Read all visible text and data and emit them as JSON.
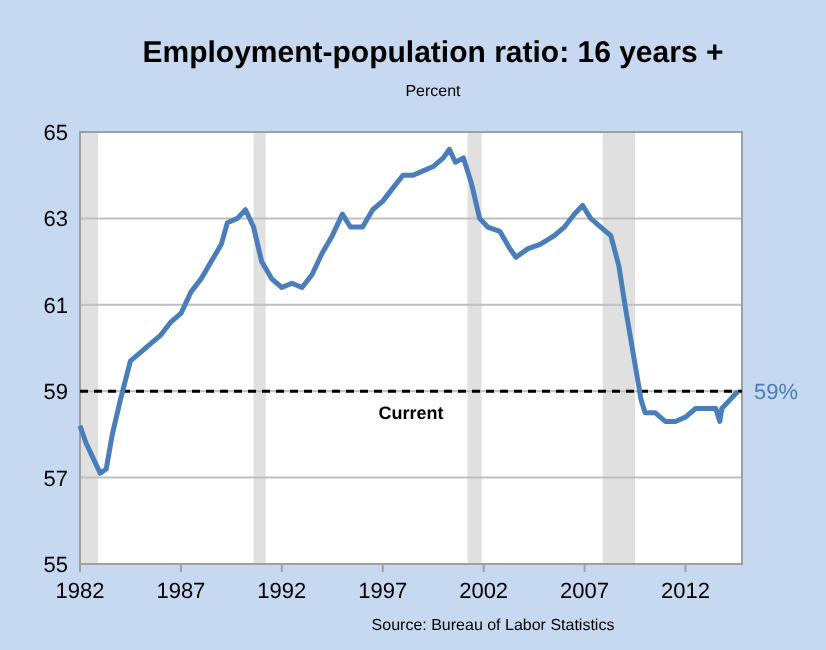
{
  "chart_data": {
    "type": "line",
    "title": "Employment-population ratio: 16 years +",
    "subtitle": "Percent",
    "x": [
      1982.0,
      1982.3,
      1982.8,
      1983.0,
      1983.3,
      1983.6,
      1984.0,
      1984.5,
      1985.0,
      1985.5,
      1986.0,
      1986.5,
      1987.0,
      1987.5,
      1988.0,
      1988.5,
      1989.0,
      1989.3,
      1989.8,
      1990.2,
      1990.6,
      1991.0,
      1991.5,
      1992.0,
      1992.5,
      1993.0,
      1993.5,
      1994.0,
      1994.5,
      1995.0,
      1995.4,
      1996.0,
      1996.5,
      1997.0,
      1997.5,
      1998.0,
      1998.5,
      1999.0,
      1999.5,
      2000.0,
      2000.3,
      2000.6,
      2001.0,
      2001.4,
      2001.8,
      2002.2,
      2002.8,
      2003.3,
      2003.6,
      2004.2,
      2004.8,
      2005.5,
      2006.0,
      2006.5,
      2006.9,
      2007.3,
      2007.8,
      2008.3,
      2008.7,
      2009.0,
      2009.4,
      2009.8,
      2010.0,
      2010.5,
      2011.0,
      2011.5,
      2012.0,
      2012.5,
      2013.0,
      2013.5,
      2013.7,
      2013.8,
      2014.2,
      2014.6
    ],
    "series": [
      {
        "color": "#4a7ebb",
        "values": [
          58.2,
          57.8,
          57.3,
          57.1,
          57.2,
          58.0,
          58.8,
          59.7,
          59.9,
          60.1,
          60.3,
          60.6,
          60.8,
          61.3,
          61.6,
          62.0,
          62.4,
          62.9,
          63.0,
          63.2,
          62.8,
          62.0,
          61.6,
          61.4,
          61.5,
          61.4,
          61.7,
          62.2,
          62.6,
          63.1,
          62.8,
          62.8,
          63.2,
          63.4,
          63.7,
          64.0,
          64.0,
          64.1,
          64.2,
          64.4,
          64.6,
          64.3,
          64.4,
          63.8,
          63.0,
          62.8,
          62.7,
          62.3,
          62.1,
          62.3,
          62.4,
          62.6,
          62.8,
          63.1,
          63.3,
          63.0,
          62.8,
          62.6,
          61.9,
          61.0,
          59.9,
          58.8,
          58.5,
          58.5,
          58.3,
          58.3,
          58.4,
          58.6,
          58.6,
          58.6,
          58.3,
          58.6,
          58.8,
          59.0
        ]
      }
    ],
    "xlim": [
      1982,
      2014.8
    ],
    "xticks": [
      1982,
      1987,
      1992,
      1997,
      2002,
      2007,
      2012
    ],
    "ylim": [
      55,
      65
    ],
    "yticks": [
      55,
      57,
      59,
      61,
      63,
      65
    ],
    "grid": "y",
    "bands": [
      {
        "axis": "x",
        "from": 1982,
        "to": 1982.9,
        "color": "#e0e0e0"
      },
      {
        "axis": "x",
        "from": 1990.6,
        "to": 1991.2,
        "color": "#e0e0e0"
      },
      {
        "axis": "x",
        "from": 2001.2,
        "to": 2001.9,
        "color": "#e0e0e0"
      },
      {
        "axis": "x",
        "from": 2007.9,
        "to": 2009.5,
        "color": "#e0e0e0"
      }
    ],
    "ref_lines": [
      {
        "axis": "y",
        "value": 59,
        "label": "Current",
        "color": "#000000",
        "line_style": "dashed"
      }
    ],
    "annotations": [
      {
        "text": "59%",
        "x": 2014.6,
        "y": 59
      },
      "Source: Bureau of Labor Statistics"
    ]
  }
}
